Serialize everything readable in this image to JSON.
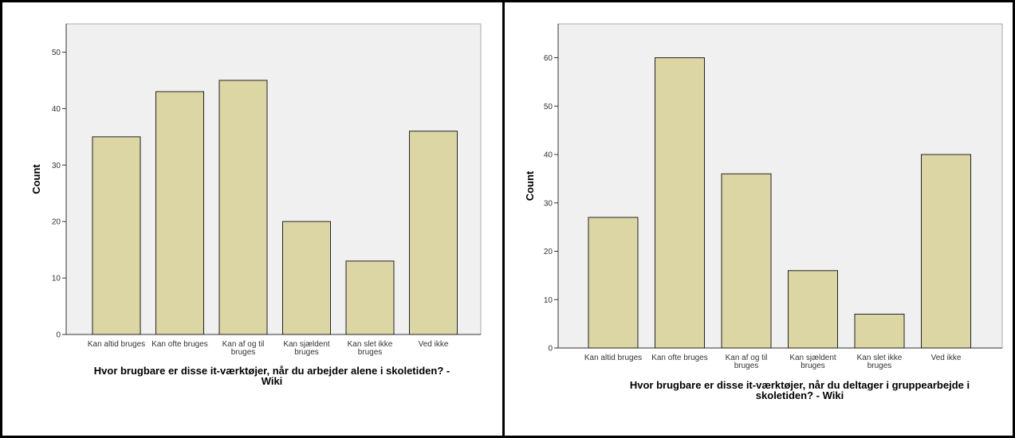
{
  "colors": {
    "bar_fill": "#dcd6a4",
    "bar_stroke": "#222222",
    "plot_bg": "#f0f0f0",
    "frame": "#000000"
  },
  "chart_data": [
    {
      "type": "bar",
      "categories": [
        [
          "Kan altid bruges"
        ],
        [
          "Kan ofte bruges"
        ],
        [
          "Kan af og til",
          "bruges"
        ],
        [
          "Kan sjældent",
          "bruges"
        ],
        [
          "Kan slet ikke",
          "bruges"
        ],
        [
          "Ved ikke"
        ]
      ],
      "values": [
        35,
        43,
        45,
        20,
        13,
        36
      ],
      "ylabel": "Count",
      "yticks": [
        0,
        10,
        20,
        30,
        40,
        50
      ],
      "ylim": [
        0,
        55
      ],
      "xlabel": [
        "Hvor brugbare er disse it-værktøjer, når du arbejder alene i skoletiden? -",
        "Wiki"
      ]
    },
    {
      "type": "bar",
      "categories": [
        [
          "Kan altid bruges"
        ],
        [
          "Kan ofte bruges"
        ],
        [
          "Kan af og til",
          "bruges"
        ],
        [
          "Kan sjældent",
          "bruges"
        ],
        [
          "Kan slet ikke",
          "bruges"
        ],
        [
          "Ved ikke"
        ]
      ],
      "values": [
        27,
        60,
        36,
        16,
        7,
        40
      ],
      "ylabel": "Count",
      "yticks": [
        0,
        10,
        20,
        30,
        40,
        50,
        60
      ],
      "ylim": [
        0,
        67
      ],
      "xlabel": [
        "Hvor brugbare er disse it-værktøjer, når du deltager i gruppearbejde i",
        "skoletiden? - Wiki"
      ]
    }
  ]
}
